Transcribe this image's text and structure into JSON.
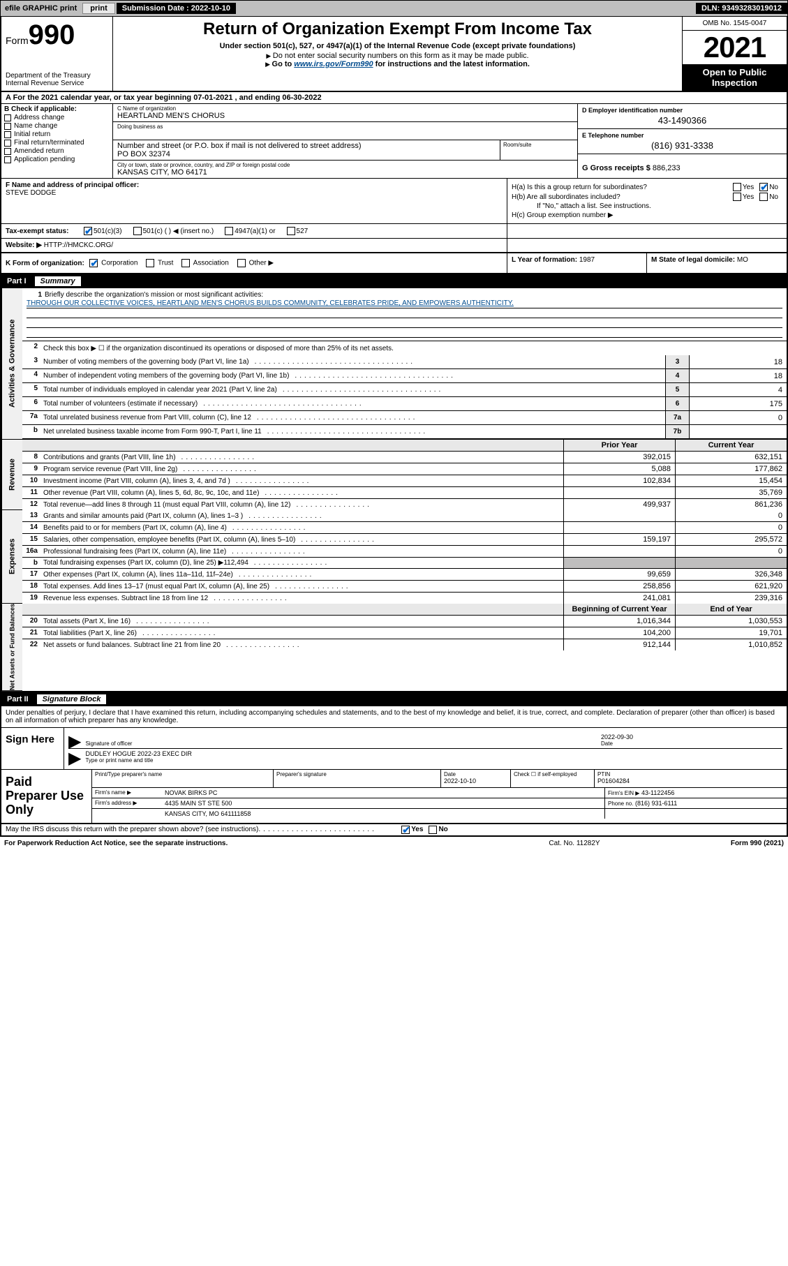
{
  "topbar": {
    "efile": "efile GRAPHIC print",
    "submission_label": "Submission Date : 2022-10-10",
    "dln": "DLN: 93493283019012"
  },
  "header": {
    "form_prefix": "Form",
    "form_number": "990",
    "dept": "Department of the Treasury",
    "irs": "Internal Revenue Service",
    "title": "Return of Organization Exempt From Income Tax",
    "sub1": "Under section 501(c), 527, or 4947(a)(1) of the Internal Revenue Code (except private foundations)",
    "sub2": "Do not enter social security numbers on this form as it may be made public.",
    "sub3_pre": "Go to ",
    "sub3_link": "www.irs.gov/Form990",
    "sub3_post": " for instructions and the latest information.",
    "omb": "OMB No. 1545-0047",
    "year": "2021",
    "opi": "Open to Public Inspection"
  },
  "rowA": "A For the 2021 calendar year, or tax year beginning 07-01-2021   , and ending 06-30-2022",
  "sectionB": {
    "B_label": "B Check if applicable:",
    "checks": [
      "Address change",
      "Name change",
      "Initial return",
      "Final return/terminated",
      "Amended return",
      "Application pending"
    ],
    "C_label": "C Name of organization",
    "C_val": "HEARTLAND MEN'S CHORUS",
    "dba_label": "Doing business as",
    "dba_val": "",
    "addr_label": "Number and street (or P.O. box if mail is not delivered to street address)",
    "addr_val": "PO BOX 32374",
    "room_label": "Room/suite",
    "city_label": "City or town, state or province, country, and ZIP or foreign postal code",
    "city_val": "KANSAS CITY, MO  64171",
    "D_label": "D Employer identification number",
    "D_val": "43-1490366",
    "E_label": "E Telephone number",
    "E_val": "(816) 931-3338",
    "G_label": "G Gross receipts $",
    "G_val": "886,233"
  },
  "FH": {
    "F_label": "F Name and address of principal officer:",
    "F_val": "STEVE DODGE",
    "Ha_label": "H(a)  Is this a group return for subordinates?",
    "Hb_label": "H(b)  Are all subordinates included?",
    "Hb_note": "If \"No,\" attach a list. See instructions.",
    "Hc_label": "H(c)  Group exemption number ▶"
  },
  "I": {
    "label": "Tax-exempt status:",
    "opts": [
      "501(c)(3)",
      "501(c) (  ) ◀ (insert no.)",
      "4947(a)(1) or",
      "527"
    ]
  },
  "J": {
    "label": "Website: ▶",
    "val": "HTTP://HMCKC.ORG/"
  },
  "K": {
    "label": "K Form of organization:",
    "opts": [
      "Corporation",
      "Trust",
      "Association",
      "Other ▶"
    ]
  },
  "L": {
    "label": "L Year of formation:",
    "val": "1987"
  },
  "M": {
    "label": "M State of legal domicile:",
    "val": "MO"
  },
  "part1": {
    "num": "Part I",
    "title": "Summary"
  },
  "summary": {
    "line1_label": "Briefly describe the organization's mission or most significant activities:",
    "line1_mission": "THROUGH OUR COLLECTIVE VOICES, HEARTLAND MEN'S CHORUS BUILDS COMMUNITY, CELEBRATES PRIDE, AND EMPOWERS AUTHENTICITY.",
    "line2": "Check this box ▶ ☐  if the organization discontinued its operations or disposed of more than 25% of its net assets.",
    "rows_single": [
      {
        "n": "3",
        "d": "Number of voting members of the governing body (Part VI, line 1a)",
        "ln": "3",
        "v": "18"
      },
      {
        "n": "4",
        "d": "Number of independent voting members of the governing body (Part VI, line 1b)",
        "ln": "4",
        "v": "18"
      },
      {
        "n": "5",
        "d": "Total number of individuals employed in calendar year 2021 (Part V, line 2a)",
        "ln": "5",
        "v": "4"
      },
      {
        "n": "6",
        "d": "Total number of volunteers (estimate if necessary)",
        "ln": "6",
        "v": "175"
      },
      {
        "n": "7a",
        "d": "Total unrelated business revenue from Part VIII, column (C), line 12",
        "ln": "7a",
        "v": "0"
      },
      {
        "n": "b",
        "d": "Net unrelated business taxable income from Form 990-T, Part I, line 11",
        "ln": "7b",
        "v": ""
      }
    ],
    "hdr_prior": "Prior Year",
    "hdr_current": "Current Year",
    "revenue": [
      {
        "n": "8",
        "d": "Contributions and grants (Part VIII, line 1h)",
        "p": "392,015",
        "c": "632,151"
      },
      {
        "n": "9",
        "d": "Program service revenue (Part VIII, line 2g)",
        "p": "5,088",
        "c": "177,862"
      },
      {
        "n": "10",
        "d": "Investment income (Part VIII, column (A), lines 3, 4, and 7d )",
        "p": "102,834",
        "c": "15,454"
      },
      {
        "n": "11",
        "d": "Other revenue (Part VIII, column (A), lines 5, 6d, 8c, 9c, 10c, and 11e)",
        "p": "",
        "c": "35,769"
      },
      {
        "n": "12",
        "d": "Total revenue—add lines 8 through 11 (must equal Part VIII, column (A), line 12)",
        "p": "499,937",
        "c": "861,236"
      }
    ],
    "expenses": [
      {
        "n": "13",
        "d": "Grants and similar amounts paid (Part IX, column (A), lines 1–3 )",
        "p": "",
        "c": "0"
      },
      {
        "n": "14",
        "d": "Benefits paid to or for members (Part IX, column (A), line 4)",
        "p": "",
        "c": "0"
      },
      {
        "n": "15",
        "d": "Salaries, other compensation, employee benefits (Part IX, column (A), lines 5–10)",
        "p": "159,197",
        "c": "295,572"
      },
      {
        "n": "16a",
        "d": "Professional fundraising fees (Part IX, column (A), line 11e)",
        "p": "",
        "c": "0"
      },
      {
        "n": "b",
        "d": "Total fundraising expenses (Part IX, column (D), line 25) ▶112,494",
        "p": "GREY",
        "c": "GREY"
      },
      {
        "n": "17",
        "d": "Other expenses (Part IX, column (A), lines 11a–11d, 11f–24e)",
        "p": "99,659",
        "c": "326,348"
      },
      {
        "n": "18",
        "d": "Total expenses. Add lines 13–17 (must equal Part IX, column (A), line 25)",
        "p": "258,856",
        "c": "621,920"
      },
      {
        "n": "19",
        "d": "Revenue less expenses. Subtract line 18 from line 12",
        "p": "241,081",
        "c": "239,316"
      }
    ],
    "hdr_begin": "Beginning of Current Year",
    "hdr_end": "End of Year",
    "netassets": [
      {
        "n": "20",
        "d": "Total assets (Part X, line 16)",
        "p": "1,016,344",
        "c": "1,030,553"
      },
      {
        "n": "21",
        "d": "Total liabilities (Part X, line 26)",
        "p": "104,200",
        "c": "19,701"
      },
      {
        "n": "22",
        "d": "Net assets or fund balances. Subtract line 21 from line 20",
        "p": "912,144",
        "c": "1,010,852"
      }
    ],
    "vtabs": {
      "gov": "Activities & Governance",
      "rev": "Revenue",
      "exp": "Expenses",
      "net": "Net Assets or Fund Balances"
    }
  },
  "part2": {
    "num": "Part II",
    "title": "Signature Block"
  },
  "penalty": "Under penalties of perjury, I declare that I have examined this return, including accompanying schedules and statements, and to the best of my knowledge and belief, it is true, correct, and complete. Declaration of preparer (other than officer) is based on all information of which preparer has any knowledge.",
  "sign": {
    "left": "Sign Here",
    "sig_label": "Signature of officer",
    "date_val": "2022-09-30",
    "date_label": "Date",
    "name_val": "DUDLEY HOGUE 2022-23 EXEC DIR",
    "name_label": "Type or print name and title"
  },
  "preparer": {
    "left": "Paid Preparer Use Only",
    "r1": {
      "c1_lbl": "Print/Type preparer's name",
      "c1_val": "",
      "c2_lbl": "Preparer's signature",
      "c2_val": "",
      "c3_lbl": "Date",
      "c3_val": "2022-10-10",
      "c4_lbl": "Check ☐ if self-employed",
      "c5_lbl": "PTIN",
      "c5_val": "P01604284"
    },
    "r2": {
      "c1_lbl": "Firm's name    ▶",
      "c1_val": "NOVAK BIRKS PC",
      "c2_lbl": "Firm's EIN ▶",
      "c2_val": "43-1122456"
    },
    "r3": {
      "c1_lbl": "Firm's address ▶",
      "c1_val": "4435 MAIN ST STE 500",
      "c2_lbl": "Phone no.",
      "c2_val": "(816) 931-6111"
    },
    "r4": {
      "c1_val": "KANSAS CITY, MO  641111858"
    }
  },
  "discuss": "May the IRS discuss this return with the preparer shown above? (see instructions)",
  "footer": {
    "left": "For Paperwork Reduction Act Notice, see the separate instructions.",
    "mid": "Cat. No. 11282Y",
    "right_pre": "Form ",
    "right_bold": "990",
    "right_post": " (2021)"
  }
}
